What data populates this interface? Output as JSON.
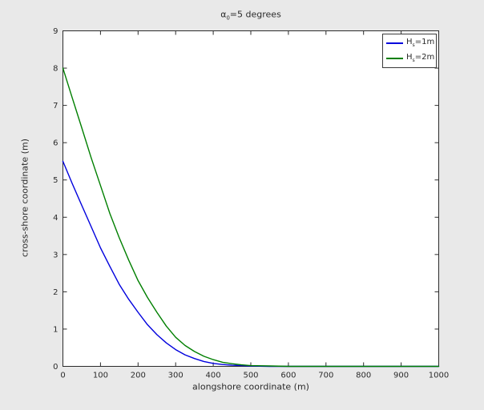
{
  "figure": {
    "title": {
      "main": "α",
      "sub": "0",
      "rest": "=5 degrees"
    },
    "xlabel": "alongshore coordinate (m)",
    "ylabel": "cross-shore coordinate (m)",
    "background_color": "#e9e9e9",
    "plot_background_color": "#ffffff",
    "axis_color": "#2b2b2b"
  },
  "legend": {
    "position": "top-right",
    "entries": [
      {
        "main": "H",
        "sub": "s",
        "rest": "=1m",
        "color": "#0000dd"
      },
      {
        "main": "H",
        "sub": "s",
        "rest": "=2m",
        "color": "#007f00"
      }
    ]
  },
  "chart_data": {
    "type": "line",
    "title": "alpha_0 = 5 degrees",
    "xlabel": "alongshore coordinate (m)",
    "ylabel": "cross-shore coordinate (m)",
    "xlim": [
      0,
      1000
    ],
    "ylim": [
      0,
      9
    ],
    "xticks": [
      0,
      100,
      200,
      300,
      400,
      500,
      600,
      700,
      800,
      900,
      1000
    ],
    "yticks": [
      0,
      1,
      2,
      3,
      4,
      5,
      6,
      7,
      8,
      9
    ],
    "grid": false,
    "legend_position": "top-right",
    "x": [
      0,
      25,
      50,
      75,
      100,
      125,
      150,
      175,
      200,
      225,
      250,
      275,
      300,
      325,
      350,
      375,
      400,
      425,
      450,
      475,
      500,
      550,
      600,
      650,
      700,
      750,
      800,
      850,
      900,
      950,
      1000
    ],
    "series": [
      {
        "name": "Hs=1m",
        "color": "#0000dd",
        "values": [
          5.5,
          4.9,
          4.32,
          3.75,
          3.18,
          2.68,
          2.2,
          1.8,
          1.45,
          1.12,
          0.85,
          0.63,
          0.45,
          0.31,
          0.21,
          0.13,
          0.08,
          0.05,
          0.03,
          0.02,
          0.01,
          0,
          0,
          0,
          0,
          0,
          0,
          0,
          0,
          0,
          0
        ]
      },
      {
        "name": "Hs=2m",
        "color": "#007f00",
        "values": [
          8.0,
          7.2,
          6.4,
          5.6,
          4.85,
          4.1,
          3.45,
          2.85,
          2.3,
          1.85,
          1.45,
          1.08,
          0.78,
          0.56,
          0.4,
          0.27,
          0.18,
          0.11,
          0.07,
          0.04,
          0.02,
          0.01,
          0,
          0,
          0,
          0,
          0,
          0,
          0,
          0,
          0
        ]
      }
    ]
  }
}
